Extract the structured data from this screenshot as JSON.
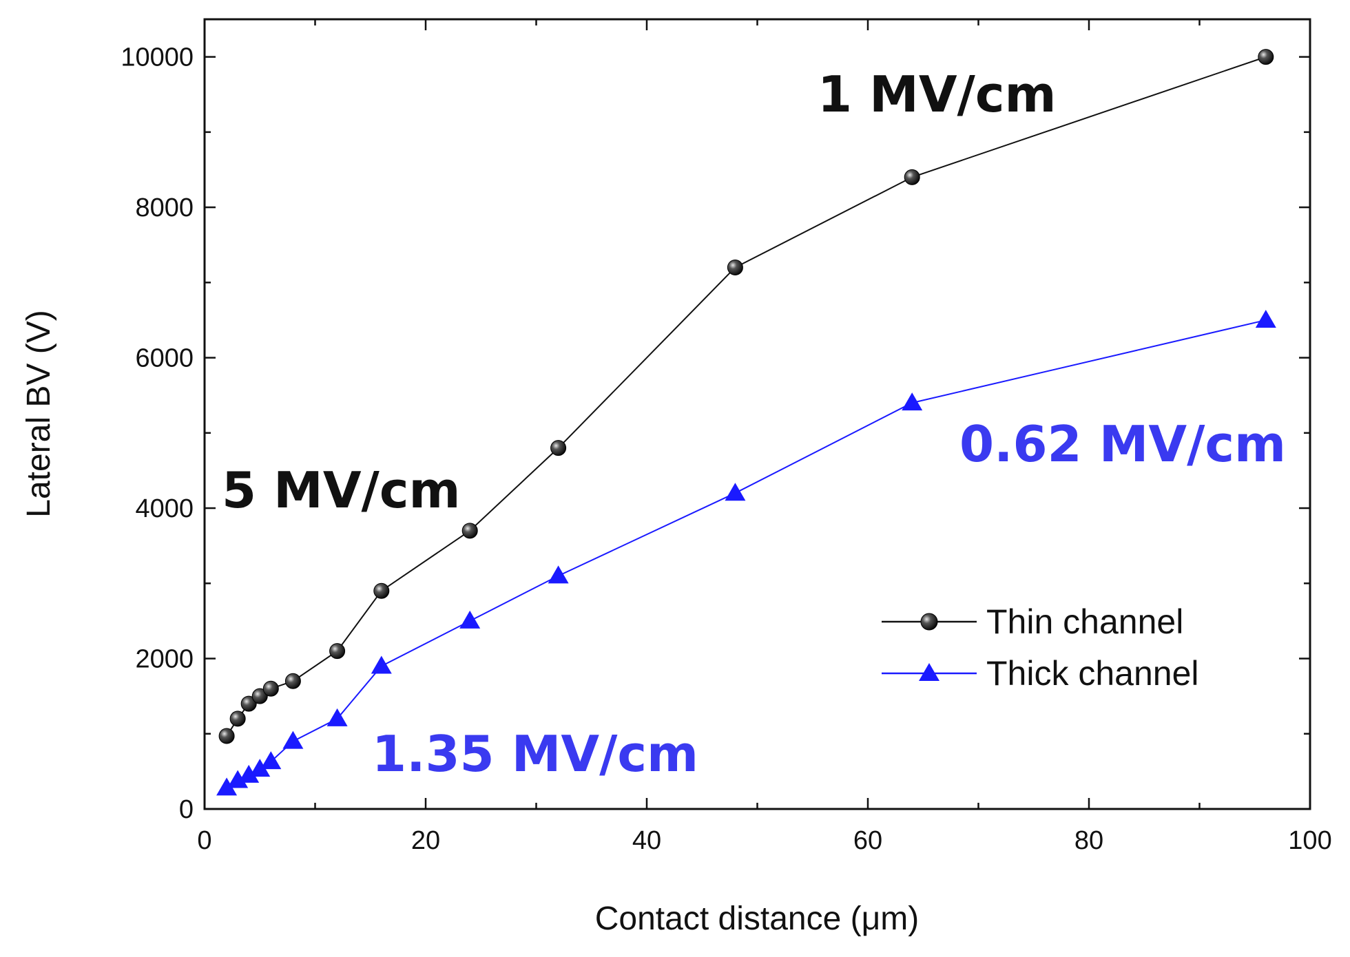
{
  "colors": {
    "thin": "#111111",
    "thick": "#1a1aff",
    "annot_black": "#111111",
    "annot_blue": "#3a3af0"
  },
  "chart_data": {
    "type": "line",
    "title": "",
    "xlabel": "Contact distance (μm)",
    "ylabel": "Lateral BV (V)",
    "xlim": [
      0,
      100
    ],
    "ylim": [
      0,
      10500
    ],
    "x_ticks": [
      0,
      20,
      40,
      60,
      80,
      100
    ],
    "y_ticks": [
      0,
      2000,
      4000,
      6000,
      8000,
      10000
    ],
    "x_tick_labels": [
      "0",
      "20",
      "40",
      "60",
      "80",
      "100"
    ],
    "y_tick_labels": [
      "0",
      "2000",
      "4000",
      "6000",
      "8000",
      "10000"
    ],
    "grid": false,
    "legend_position": "bottom-right",
    "series": [
      {
        "name": "Thin channel",
        "marker": "circle",
        "color": "#111111",
        "x": [
          2,
          3,
          4,
          5,
          6,
          8,
          12,
          16,
          24,
          32,
          48,
          64,
          96
        ],
        "y": [
          970,
          1200,
          1400,
          1500,
          1600,
          1700,
          2100,
          2900,
          3700,
          4800,
          7200,
          8400,
          10000
        ]
      },
      {
        "name": "Thick channel",
        "marker": "triangle",
        "color": "#1a1aff",
        "x": [
          2,
          3,
          4,
          5,
          6,
          8,
          12,
          16,
          24,
          32,
          48,
          64,
          96
        ],
        "y": [
          280,
          380,
          450,
          530,
          630,
          900,
          1200,
          1900,
          2500,
          3100,
          4200,
          5400,
          6500
        ]
      }
    ],
    "annotations": [
      {
        "text": "1 MV/cm",
        "color": "annot_black"
      },
      {
        "text": "5 MV/cm",
        "color": "annot_black"
      },
      {
        "text": "0.62 MV/cm",
        "color": "annot_blue"
      },
      {
        "text": "1.35 MV/cm",
        "color": "annot_blue"
      }
    ]
  }
}
